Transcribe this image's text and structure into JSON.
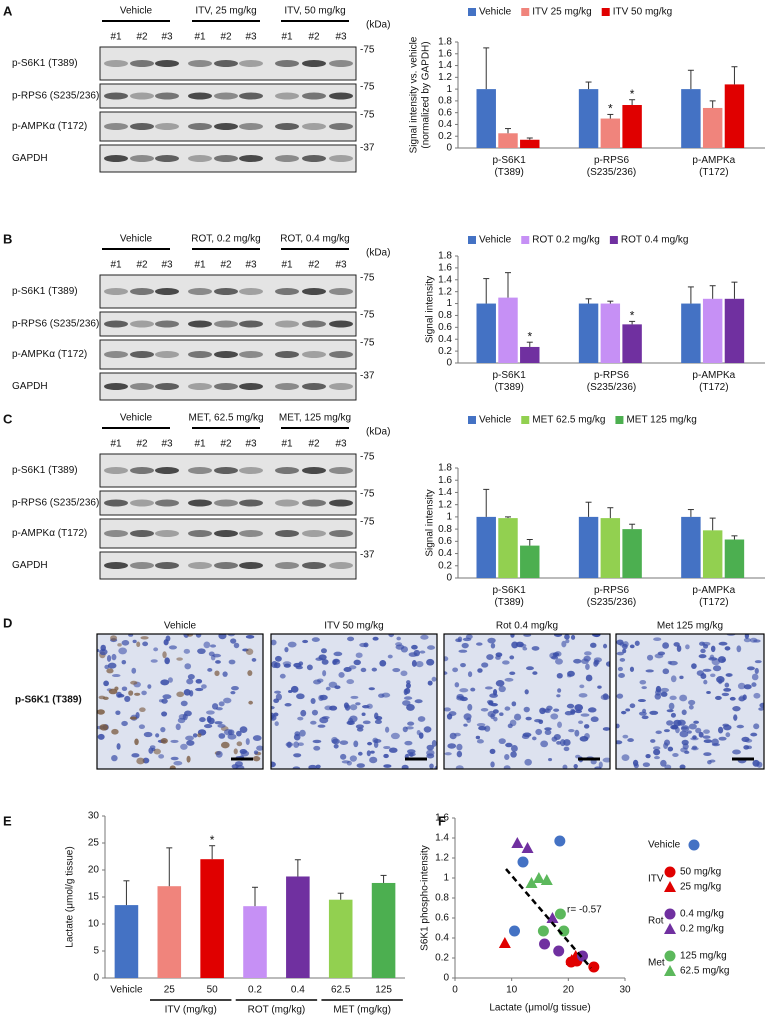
{
  "panel_labels": [
    "A",
    "B",
    "C",
    "D",
    "E",
    "F"
  ],
  "blots": [
    {
      "groups": [
        "Vehicle",
        "ITV, 25 mg/kg",
        "ITV, 50 mg/kg"
      ],
      "lanes": [
        "#1",
        "#2",
        "#3",
        "#1",
        "#2",
        "#3",
        "#1",
        "#2",
        "#3"
      ],
      "unit": "(kDa)",
      "rows": [
        {
          "label": "p-S6K1 (T389)",
          "kda": "-75"
        },
        {
          "label": "p-RPS6 (S235/236)",
          "kda": "-75"
        },
        {
          "label": "p-AMPKα (T172)",
          "kda": "-75"
        },
        {
          "label": "GAPDH",
          "kda": "-37"
        }
      ]
    },
    {
      "groups": [
        "Vehicle",
        "ROT, 0.2 mg/kg",
        "ROT, 0.4 mg/kg"
      ],
      "lanes": [
        "#1",
        "#2",
        "#3",
        "#1",
        "#2",
        "#3",
        "#1",
        "#2",
        "#3"
      ],
      "unit": "(kDa)",
      "rows": [
        {
          "label": "p-S6K1 (T389)",
          "kda": "-75"
        },
        {
          "label": "p-RPS6 (S235/236)",
          "kda": "-75"
        },
        {
          "label": "p-AMPKα (T172)",
          "kda": "-75"
        },
        {
          "label": "GAPDH",
          "kda": "-37"
        }
      ]
    },
    {
      "groups": [
        "Vehicle",
        "MET, 62.5 mg/kg",
        "MET, 125 mg/kg"
      ],
      "lanes": [
        "#1",
        "#2",
        "#3",
        "#1",
        "#2",
        "#3",
        "#1",
        "#2",
        "#3"
      ],
      "unit": "(kDa)",
      "rows": [
        {
          "label": "p-S6K1 (T389)",
          "kda": "-75"
        },
        {
          "label": "p-RPS6 (S235/236)",
          "kda": "-75"
        },
        {
          "label": "p-AMPKα (T172)",
          "kda": "-75"
        },
        {
          "label": "GAPDH",
          "kda": "-37"
        }
      ]
    }
  ],
  "histology": {
    "stain": "p-S6K1 (T389)",
    "panels": [
      "Vehicle",
      "ITV 50 mg/kg",
      "Rot 0.4 mg/kg",
      "Met 125 mg/kg"
    ]
  },
  "chart_data": [
    {
      "type": "bar",
      "ylabel": [
        "Signal intensity vs. vehicle",
        "(normalized by GAPDH)"
      ],
      "categories": [
        "p-S6K1 (T389)",
        "p-RPS6 (S235/236)",
        "p-AMPKa (T172)"
      ],
      "ylim": [
        0,
        1.8
      ],
      "yticks": [
        0,
        0.2,
        0.4,
        0.6,
        0.8,
        1,
        1.2,
        1.4,
        1.6,
        1.8
      ],
      "series": [
        {
          "name": "Vehicle",
          "color": "#4472c4",
          "values": [
            1,
            1,
            1
          ],
          "errors": [
            0.7,
            0.12,
            0.32
          ],
          "significance": [
            null,
            null,
            null
          ]
        },
        {
          "name": "ITV 25 mg/kg",
          "color": "#f0847c",
          "values": [
            0.25,
            0.5,
            0.68
          ],
          "errors": [
            0.08,
            0.07,
            0.12
          ],
          "significance": [
            null,
            "*",
            null
          ]
        },
        {
          "name": "ITV 50 mg/kg",
          "color": "#e00000",
          "values": [
            0.14,
            0.73,
            1.08
          ],
          "errors": [
            0.03,
            0.09,
            0.3
          ],
          "significance": [
            null,
            "*",
            null
          ]
        }
      ]
    },
    {
      "type": "bar",
      "ylabel": [
        "Signal intensity"
      ],
      "categories": [
        "p-S6K1 (T389)",
        "p-RPS6 (S235/236)",
        "p-AMPKa (T172)"
      ],
      "ylim": [
        0,
        1.8
      ],
      "yticks": [
        0,
        0.2,
        0.4,
        0.6,
        0.8,
        1,
        1.2,
        1.4,
        1.6,
        1.8
      ],
      "series": [
        {
          "name": "Vehicle",
          "color": "#4472c4",
          "values": [
            1,
            1,
            1
          ],
          "errors": [
            0.42,
            0.08,
            0.28
          ],
          "significance": [
            null,
            null,
            null
          ]
        },
        {
          "name": "ROT 0.2 mg/kg",
          "color": "#c690f5",
          "values": [
            1.1,
            1,
            1.08
          ],
          "errors": [
            0.42,
            0.04,
            0.22
          ],
          "significance": [
            null,
            null,
            null
          ]
        },
        {
          "name": "ROT 0.4 mg/kg",
          "color": "#7030a0",
          "values": [
            0.27,
            0.65,
            1.08
          ],
          "errors": [
            0.08,
            0.05,
            0.28
          ],
          "significance": [
            "*",
            "*",
            null
          ]
        }
      ]
    },
    {
      "type": "bar",
      "ylabel": [
        "Signal intensity"
      ],
      "categories": [
        "p-S6K1 (T389)",
        "p-RPS6 (S235/236)",
        "p-AMPKa (T172)"
      ],
      "ylim": [
        0,
        1.8
      ],
      "yticks": [
        0,
        0.2,
        0.4,
        0.6,
        0.8,
        1,
        1.2,
        1.4,
        1.6,
        1.8
      ],
      "series": [
        {
          "name": "Vehicle",
          "color": "#4472c4",
          "values": [
            1,
            1,
            1
          ],
          "errors": [
            0.45,
            0.24,
            0.12
          ],
          "significance": [
            null,
            null,
            null
          ]
        },
        {
          "name": "MET 62.5 mg/kg",
          "color": "#92d050",
          "values": [
            0.98,
            0.98,
            0.78
          ],
          "errors": [
            0.02,
            0.17,
            0.2
          ],
          "significance": [
            null,
            null,
            null
          ]
        },
        {
          "name": "MET 125 mg/kg",
          "color": "#4caf50",
          "values": [
            0.53,
            0.8,
            0.63
          ],
          "errors": [
            0.1,
            0.08,
            0.06
          ],
          "significance": [
            null,
            null,
            null
          ]
        }
      ]
    },
    {
      "type": "bar",
      "ylabel": [
        "Lactate (μmol/g tissue)"
      ],
      "categories": [
        "Vehicle",
        "25",
        "50",
        "0.2",
        "0.4",
        "62.5",
        "125"
      ],
      "category_groups": [
        null,
        "ITV (mg/kg)",
        "ITV (mg/kg)",
        "ROT (mg/kg)",
        "ROT (mg/kg)",
        "MET (mg/kg)",
        "MET (mg/kg)"
      ],
      "values": [
        13.5,
        17,
        22,
        13.3,
        18.8,
        14.5,
        17.6
      ],
      "errors": [
        4.5,
        7.1,
        2.5,
        3.5,
        3.1,
        1.2,
        1.4
      ],
      "significance": [
        null,
        null,
        "*",
        null,
        null,
        null,
        null
      ],
      "colors": [
        "#4472c4",
        "#f0847c",
        "#e00000",
        "#c690f5",
        "#7030a0",
        "#92d050",
        "#4caf50"
      ],
      "ylim": [
        0,
        30
      ],
      "yticks": [
        0,
        5,
        10,
        15,
        20,
        25,
        30
      ]
    },
    {
      "type": "scatter",
      "ylabel": [
        "S6K1 phospho-intensity"
      ],
      "xlabel": "Lactate (μmol/g tissue)",
      "xlim": [
        0,
        30
      ],
      "xticks": [
        0,
        10,
        20,
        30
      ],
      "ylim": [
        0,
        1.6
      ],
      "yticks": [
        0,
        0.2,
        0.4,
        0.6,
        0.8,
        1,
        1.2,
        1.4,
        1.6
      ],
      "annotation": "r= -0.57",
      "trendline": {
        "x": [
          9,
          24
        ],
        "y": [
          1.09,
          0.1
        ]
      },
      "series": [
        {
          "name": "Vehicle",
          "color": "#4472c4",
          "marker": "circle",
          "x": [
            10.5,
            12,
            18.5
          ],
          "values": [
            0.47,
            1.16,
            1.37
          ]
        },
        {
          "group": "ITV",
          "name": "50 mg/kg",
          "color": "#e00000",
          "marker": "circle",
          "x": [
            20.5,
            21.5,
            24.5
          ],
          "values": [
            0.16,
            0.17,
            0.11
          ]
        },
        {
          "group": "ITV",
          "name": "25 mg/kg",
          "color": "#e00000",
          "marker": "triangle",
          "x": [
            8.8,
            20.6,
            21.3
          ],
          "values": [
            0.35,
            0.18,
            0.22
          ]
        },
        {
          "group": "Rot",
          "name": "0.4 mg/kg",
          "color": "#7030a0",
          "marker": "circle",
          "x": [
            15.8,
            18.3,
            22.5
          ],
          "values": [
            0.34,
            0.27,
            0.22
          ]
        },
        {
          "group": "Rot",
          "name": "0.2 mg/kg",
          "color": "#7030a0",
          "marker": "triangle",
          "x": [
            11,
            12.8,
            17.2
          ],
          "values": [
            1.35,
            1.3,
            0.6
          ]
        },
        {
          "group": "Met",
          "name": "125 mg/kg",
          "color": "#5cb85c",
          "marker": "circle",
          "x": [
            15.6,
            18.6,
            19.2
          ],
          "values": [
            0.47,
            0.64,
            0.47
          ]
        },
        {
          "group": "Met",
          "name": "62.5 mg/kg",
          "color": "#5cb85c",
          "marker": "triangle",
          "x": [
            13.5,
            14.8,
            16.2
          ],
          "values": [
            0.95,
            1,
            0.98
          ]
        }
      ]
    }
  ]
}
